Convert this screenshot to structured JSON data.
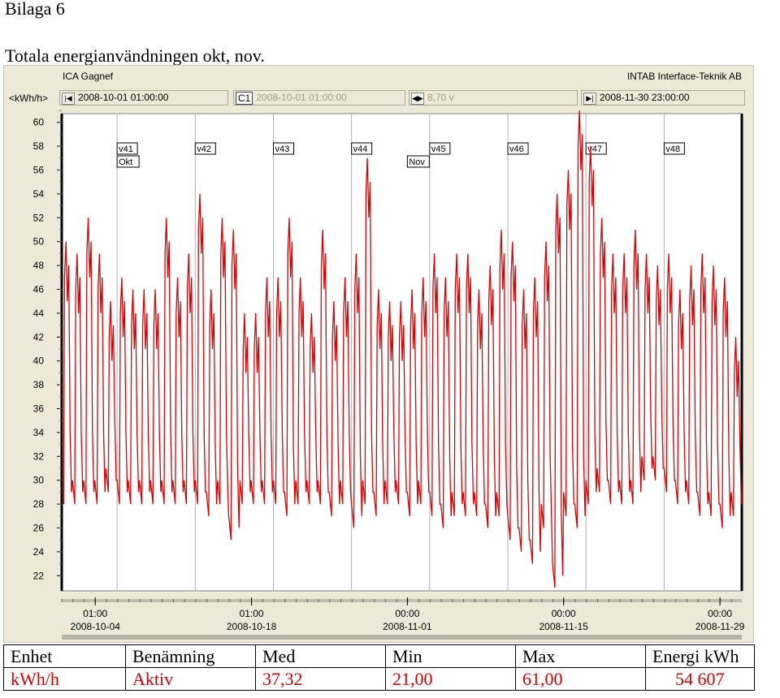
{
  "document": {
    "heading": "Bilaga 6",
    "subheading": "Totala energianvändningen okt, nov."
  },
  "app": {
    "title": "ICA Gagnef",
    "vendor": "INTAB Interface-Teknik AB",
    "toolbar": {
      "unit": "<kWh/h>",
      "start_time": "2008-10-01 01:00:00",
      "cursor_label": "C1",
      "cursor_time": "2008-10-01 01:00:00",
      "cursor_value": "8,70 v",
      "end_time": "2008-11-30 23:00:00"
    },
    "colors": {
      "window": "#ece9d8",
      "plot_bg": "#ffffff",
      "series": "#dd0000",
      "grid": "#b0b0b0"
    }
  },
  "chart_data": {
    "type": "line",
    "title": "",
    "ylabel": "kWh/h",
    "ylim": [
      21,
      61
    ],
    "y_ticks": [
      22,
      24,
      26,
      28,
      30,
      32,
      34,
      36,
      38,
      40,
      42,
      44,
      46,
      48,
      50,
      52,
      54,
      56,
      58,
      60
    ],
    "x_range": [
      "2008-10-01 01:00",
      "2008-11-30 23:00"
    ],
    "x_ticks": [
      {
        "date": "2008-10-04",
        "time": "01:00"
      },
      {
        "date": "2008-10-18",
        "time": "01:00"
      },
      {
        "date": "2008-11-01",
        "time": "00:00"
      },
      {
        "date": "2008-11-15",
        "time": "00:00"
      },
      {
        "date": "2008-11-29",
        "time": "00:00"
      }
    ],
    "week_markers": [
      {
        "label": "v41",
        "date": "2008-10-06"
      },
      {
        "label": "v42",
        "date": "2008-10-13"
      },
      {
        "label": "v43",
        "date": "2008-10-20"
      },
      {
        "label": "v44",
        "date": "2008-10-27"
      },
      {
        "label": "v45",
        "date": "2008-11-03"
      },
      {
        "label": "v46",
        "date": "2008-11-10"
      },
      {
        "label": "v47",
        "date": "2008-11-17"
      },
      {
        "label": "v48",
        "date": "2008-11-24"
      }
    ],
    "month_markers": [
      {
        "label": "Okt",
        "date": "2008-10-06"
      },
      {
        "label": "Nov",
        "date": "2008-11-01"
      }
    ],
    "grid": true,
    "series": [
      {
        "color": "#dd0000",
        "daily": [
          {
            "date": "2008-10-01",
            "min": 28,
            "max": 50
          },
          {
            "date": "2008-10-02",
            "min": 28,
            "max": 49
          },
          {
            "date": "2008-10-03",
            "min": 28,
            "max": 52
          },
          {
            "date": "2008-10-04",
            "min": 28,
            "max": 49
          },
          {
            "date": "2008-10-05",
            "min": 29,
            "max": 45
          },
          {
            "date": "2008-10-06",
            "min": 28,
            "max": 47
          },
          {
            "date": "2008-10-07",
            "min": 28,
            "max": 46
          },
          {
            "date": "2008-10-08",
            "min": 28,
            "max": 46
          },
          {
            "date": "2008-10-09",
            "min": 28,
            "max": 46
          },
          {
            "date": "2008-10-10",
            "min": 28,
            "max": 52
          },
          {
            "date": "2008-10-11",
            "min": 28,
            "max": 47
          },
          {
            "date": "2008-10-12",
            "min": 28,
            "max": 49
          },
          {
            "date": "2008-10-13",
            "min": 28,
            "max": 54
          },
          {
            "date": "2008-10-14",
            "min": 27,
            "max": 46
          },
          {
            "date": "2008-10-15",
            "min": 28,
            "max": 52
          },
          {
            "date": "2008-10-16",
            "min": 25,
            "max": 51
          },
          {
            "date": "2008-10-17",
            "min": 28,
            "max": 44
          },
          {
            "date": "2008-10-18",
            "min": 28,
            "max": 44
          },
          {
            "date": "2008-10-19",
            "min": 28,
            "max": 47
          },
          {
            "date": "2008-10-20",
            "min": 28,
            "max": 47
          },
          {
            "date": "2008-10-21",
            "min": 27,
            "max": 52
          },
          {
            "date": "2008-10-22",
            "min": 28,
            "max": 47
          },
          {
            "date": "2008-10-23",
            "min": 28,
            "max": 44
          },
          {
            "date": "2008-10-24",
            "min": 28,
            "max": 51
          },
          {
            "date": "2008-10-25",
            "min": 27,
            "max": 45
          },
          {
            "date": "2008-10-26",
            "min": 28,
            "max": 47
          },
          {
            "date": "2008-10-27",
            "min": 26,
            "max": 49
          },
          {
            "date": "2008-10-28",
            "min": 28,
            "max": 57
          },
          {
            "date": "2008-10-29",
            "min": 27,
            "max": 46
          },
          {
            "date": "2008-10-30",
            "min": 28,
            "max": 45
          },
          {
            "date": "2008-10-31",
            "min": 28,
            "max": 45
          },
          {
            "date": "2008-11-01",
            "min": 27,
            "max": 46
          },
          {
            "date": "2008-11-02",
            "min": 28,
            "max": 47
          },
          {
            "date": "2008-11-03",
            "min": 27,
            "max": 49
          },
          {
            "date": "2008-11-04",
            "min": 26,
            "max": 47
          },
          {
            "date": "2008-11-05",
            "min": 27,
            "max": 49
          },
          {
            "date": "2008-11-06",
            "min": 27,
            "max": 49
          },
          {
            "date": "2008-11-07",
            "min": 27,
            "max": 46
          },
          {
            "date": "2008-11-08",
            "min": 26,
            "max": 48
          },
          {
            "date": "2008-11-09",
            "min": 27,
            "max": 51
          },
          {
            "date": "2008-11-10",
            "min": 25,
            "max": 50
          },
          {
            "date": "2008-11-11",
            "min": 24,
            "max": 46
          },
          {
            "date": "2008-11-12",
            "min": 23,
            "max": 47
          },
          {
            "date": "2008-11-13",
            "min": 26,
            "max": 50
          },
          {
            "date": "2008-11-14",
            "min": 21,
            "max": 54
          },
          {
            "date": "2008-11-15",
            "min": 27,
            "max": 56
          },
          {
            "date": "2008-11-16",
            "min": 26,
            "max": 61
          },
          {
            "date": "2008-11-17",
            "min": 28,
            "max": 58
          },
          {
            "date": "2008-11-18",
            "min": 29,
            "max": 52
          },
          {
            "date": "2008-11-19",
            "min": 28,
            "max": 49
          },
          {
            "date": "2008-11-20",
            "min": 28,
            "max": 49
          },
          {
            "date": "2008-11-21",
            "min": 28,
            "max": 51
          },
          {
            "date": "2008-11-22",
            "min": 30,
            "max": 49
          },
          {
            "date": "2008-11-23",
            "min": 30,
            "max": 48
          },
          {
            "date": "2008-11-24",
            "min": 29,
            "max": 49
          },
          {
            "date": "2008-11-25",
            "min": 28,
            "max": 46
          },
          {
            "date": "2008-11-26",
            "min": 28,
            "max": 48
          },
          {
            "date": "2008-11-27",
            "min": 27,
            "max": 49
          },
          {
            "date": "2008-11-28",
            "min": 27,
            "max": 48
          },
          {
            "date": "2008-11-29",
            "min": 26,
            "max": 47
          },
          {
            "date": "2008-11-30",
            "min": 27,
            "max": 42
          }
        ]
      }
    ]
  },
  "stats_table": {
    "headers": [
      "Enhet",
      "Benämning",
      "Med",
      "Min",
      "Max",
      "Energi kWh"
    ],
    "row": [
      "kWh/h",
      "Aktiv",
      "37,32",
      "21,00",
      "61,00",
      "54 607"
    ]
  }
}
